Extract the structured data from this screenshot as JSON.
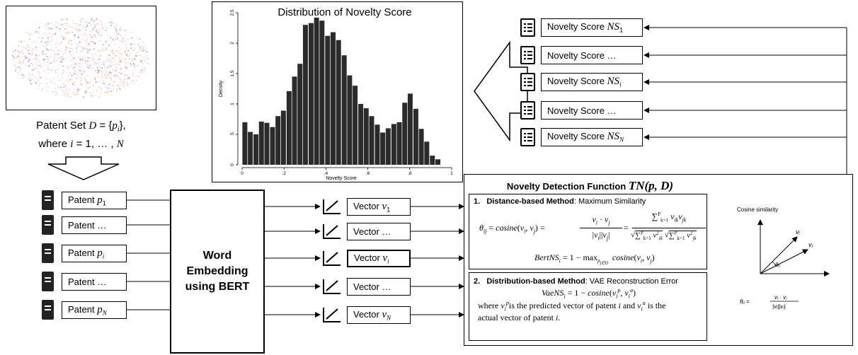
{
  "patent_set": {
    "line1": "Patent Set D = {pᵢ},",
    "line2": "where i = 1, … , N"
  },
  "patents": [
    {
      "label": "Patent p₁"
    },
    {
      "label": "Patent …"
    },
    {
      "label": "Patent pᵢ"
    },
    {
      "label": "Patent …"
    },
    {
      "label": "Patent p_N"
    }
  ],
  "embedding": {
    "line1": "Word",
    "line2": "Embedding",
    "line3": "using BERT"
  },
  "vectors": [
    {
      "label": "Vector v₁"
    },
    {
      "label": "Vector …"
    },
    {
      "label": "Vector vᵢ"
    },
    {
      "label": "Vector …"
    },
    {
      "label": "Vector v_N"
    }
  ],
  "novelty_scores": [
    {
      "label": "Novelty Score NS₁"
    },
    {
      "label": "Novelty Score …"
    },
    {
      "label": "Novelty Score NSᵢ"
    },
    {
      "label": "Novelty Score …"
    },
    {
      "label": "Novelty Score NS_N"
    }
  ],
  "ndf": {
    "title_text": "Novelty Detection Function",
    "title_math": "TN(p, D)",
    "m1_num": "1.",
    "m1_name": "Distance-based Method",
    "m1_desc": ": Maximum Similarity",
    "m1_eq": "θᵢⱼ = cosine(vᵢ, vⱼ) = vᵢ · vⱼ / |vᵢ||vⱼ| = Σᵖₖ₌₁ vᵢₖvⱼₖ / √(Σᵖₖ₌₁ v²ᵢₖ) √(Σᵖₖ₌₁ v²ⱼₖ)",
    "m1_bert": "BertNSᵢ = 1 − max_{pⱼ∈Dᵢ} cosine(vᵢ, vⱼ)",
    "m2_num": "2.",
    "m2_name": "Distribution-based Method",
    "m2_desc": ": VAE Reconstruction Error",
    "m2_eq": "VaeNSᵢ = 1 − cosine(vᵢᵖ, vᵢᵃ)",
    "m2_text1": "where vᵢᵖ is the predicted vector of patent i and vᵢᵃ is the",
    "m2_text2": "actual vector of patent i."
  },
  "cosine_panel": {
    "title": "Cosine similarity",
    "vi": "vᵢ",
    "vj": "vⱼ",
    "theta": "θᵢⱼ",
    "formula_lhs": "θᵢⱼ =",
    "formula_num": "vᵢ · vⱼ",
    "formula_den": "|vᵢ||vⱼ|"
  },
  "chart_data": {
    "type": "bar",
    "title": "Distribution of Novelty Score",
    "xlabel": "Novelty Score",
    "ylabel": "Density",
    "xlim": [
      0,
      1
    ],
    "ylim": [
      0,
      2.5
    ],
    "xticks": [
      "0",
      ".2",
      ".4",
      ".6",
      ".8",
      "1"
    ],
    "yticks": [
      "0",
      ".5",
      "1",
      "1.5",
      "2",
      "2.5"
    ],
    "bin_width": 0.0263,
    "bin_starts": [
      0.0,
      0.026,
      0.053,
      0.079,
      0.105,
      0.132,
      0.158,
      0.184,
      0.211,
      0.237,
      0.263,
      0.289,
      0.316,
      0.342,
      0.368,
      0.395,
      0.421,
      0.447,
      0.474,
      0.5,
      0.526,
      0.553,
      0.579,
      0.605,
      0.632,
      0.658,
      0.684,
      0.711,
      0.737,
      0.763,
      0.789,
      0.816,
      0.842,
      0.868,
      0.895,
      0.921
    ],
    "values": [
      0.7,
      0.54,
      0.5,
      0.71,
      0.69,
      0.62,
      0.8,
      0.89,
      1.21,
      1.45,
      1.66,
      2.3,
      2.33,
      2.42,
      2.37,
      2.12,
      2.18,
      2.05,
      1.8,
      1.47,
      1.3,
      1.0,
      0.93,
      0.8,
      0.66,
      0.53,
      0.6,
      0.67,
      0.7,
      1.02,
      1.17,
      0.92,
      0.59,
      0.38,
      0.15,
      0.09
    ]
  },
  "colors": {
    "line": "#000000",
    "dot_red": "#e8a18f",
    "dot_blue": "#6f78c8"
  }
}
